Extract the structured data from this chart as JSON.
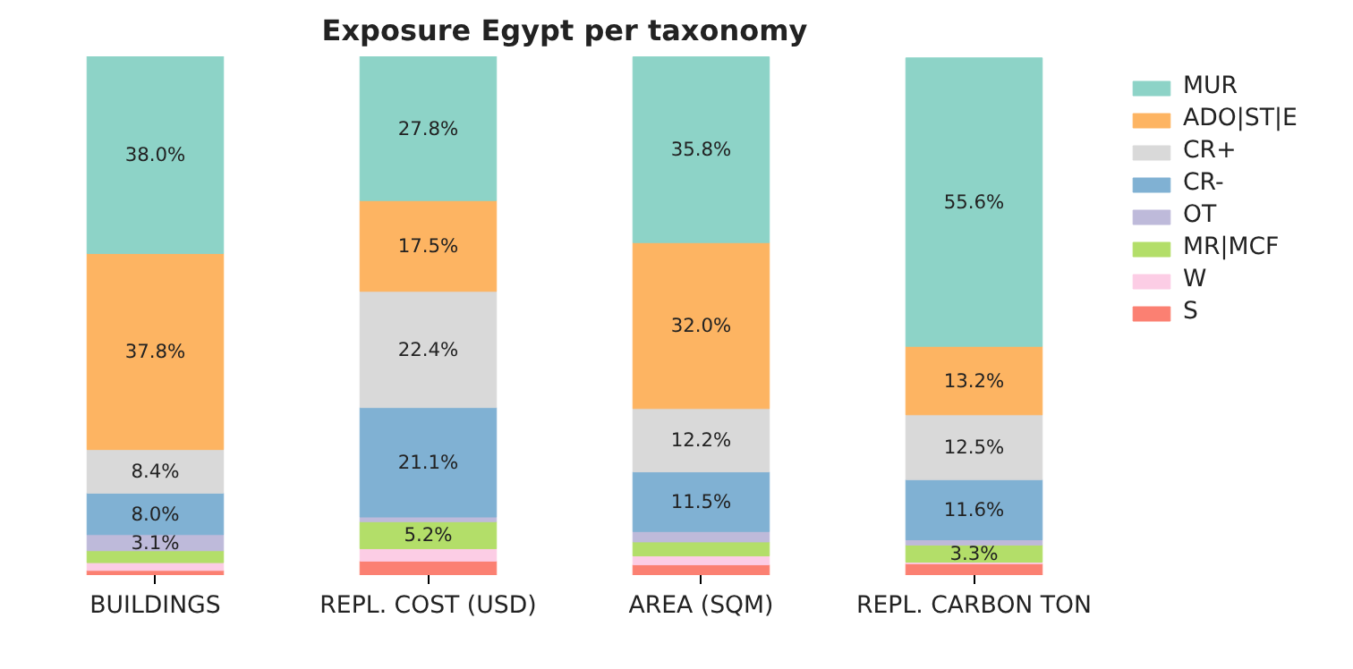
{
  "chart_data": {
    "type": "bar",
    "stacked": true,
    "title": "Exposure Egypt per taxonomy",
    "categories": [
      "BUILDINGS",
      "REPL. COST (USD)",
      "AREA (SQM)",
      "REPL. CARBON TON"
    ],
    "legend": "top right",
    "series": [
      {
        "name": "S",
        "color": "#fb8072",
        "values": [
          0.9,
          2.7,
          2.0,
          2.2
        ],
        "value_labels": [
          null,
          null,
          null,
          null
        ]
      },
      {
        "name": "W",
        "color": "#fccde5",
        "values": [
          1.5,
          2.4,
          1.7,
          0.3
        ],
        "value_labels": [
          null,
          null,
          null,
          null
        ]
      },
      {
        "name": "MR|MCF",
        "color": "#b3de69",
        "values": [
          2.3,
          5.2,
          2.7,
          3.3
        ],
        "value_labels": [
          null,
          "5.2%",
          null,
          "3.3%"
        ]
      },
      {
        "name": "OT",
        "color": "#bebada",
        "values": [
          3.1,
          0.9,
          2.0,
          1.0
        ],
        "value_labels": [
          "3.1%",
          null,
          null,
          null
        ]
      },
      {
        "name": "CR-",
        "color": "#80b1d3",
        "values": [
          8.0,
          21.1,
          11.5,
          11.6
        ],
        "value_labels": [
          "8.0%",
          "21.1%",
          "11.5%",
          "11.6%"
        ]
      },
      {
        "name": "CR+",
        "color": "#d9d9d9",
        "values": [
          8.4,
          22.4,
          12.2,
          12.5
        ],
        "value_labels": [
          "8.4%",
          "22.4%",
          "12.2%",
          "12.5%"
        ]
      },
      {
        "name": "ADO|ST|E",
        "color": "#fdb462",
        "values": [
          37.8,
          17.5,
          32.0,
          13.2
        ],
        "value_labels": [
          "37.8%",
          "17.5%",
          "32.0%",
          "13.2%"
        ]
      },
      {
        "name": "MUR",
        "color": "#8dd3c7",
        "values": [
          38.0,
          27.8,
          35.8,
          55.6
        ],
        "value_labels": [
          "38.0%",
          "27.8%",
          "35.8%",
          "55.6%"
        ]
      }
    ]
  }
}
